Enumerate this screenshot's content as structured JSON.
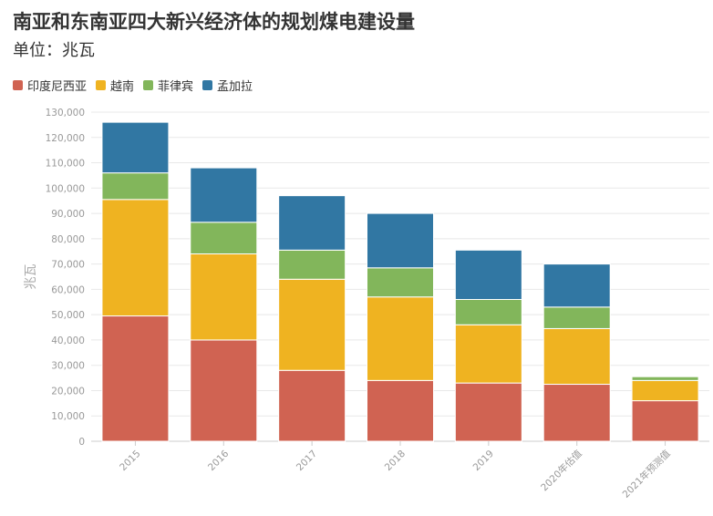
{
  "chart_data": {
    "type": "bar",
    "stacked": true,
    "title": "南亚和东南亚四大新兴经济体的规划煤电建设量",
    "subtitle": "单位：兆瓦",
    "ylabel": "兆瓦",
    "xlabel": "",
    "ylim": [
      0,
      130000
    ],
    "yticks": [
      0,
      10000,
      20000,
      30000,
      40000,
      50000,
      60000,
      70000,
      80000,
      90000,
      100000,
      110000,
      120000,
      130000
    ],
    "yticks_labels": [
      "0",
      "10,000",
      "20,000",
      "30,000",
      "40,000",
      "50,000",
      "60,000",
      "70,000",
      "80,000",
      "90,000",
      "100,000",
      "110,000",
      "120,000",
      "130,000"
    ],
    "categories": [
      "2015",
      "2016",
      "2017",
      "2018",
      "2019",
      "2020年估值",
      "2021年预测值"
    ],
    "legend_position": "top-left",
    "grid": true,
    "series": [
      {
        "name": "印度尼西亚",
        "color": "#d06352",
        "values": [
          49500,
          40000,
          28000,
          24000,
          23000,
          22500,
          16000
        ]
      },
      {
        "name": "越南",
        "color": "#efb321",
        "values": [
          46000,
          34000,
          36000,
          33000,
          23000,
          22000,
          8000
        ]
      },
      {
        "name": "菲律宾",
        "color": "#82b65b",
        "values": [
          10500,
          12500,
          11500,
          11500,
          10000,
          8500,
          1500
        ]
      },
      {
        "name": "孟加拉",
        "color": "#3177a3",
        "values": [
          20000,
          21500,
          21500,
          21500,
          19500,
          17000,
          0
        ]
      }
    ]
  }
}
